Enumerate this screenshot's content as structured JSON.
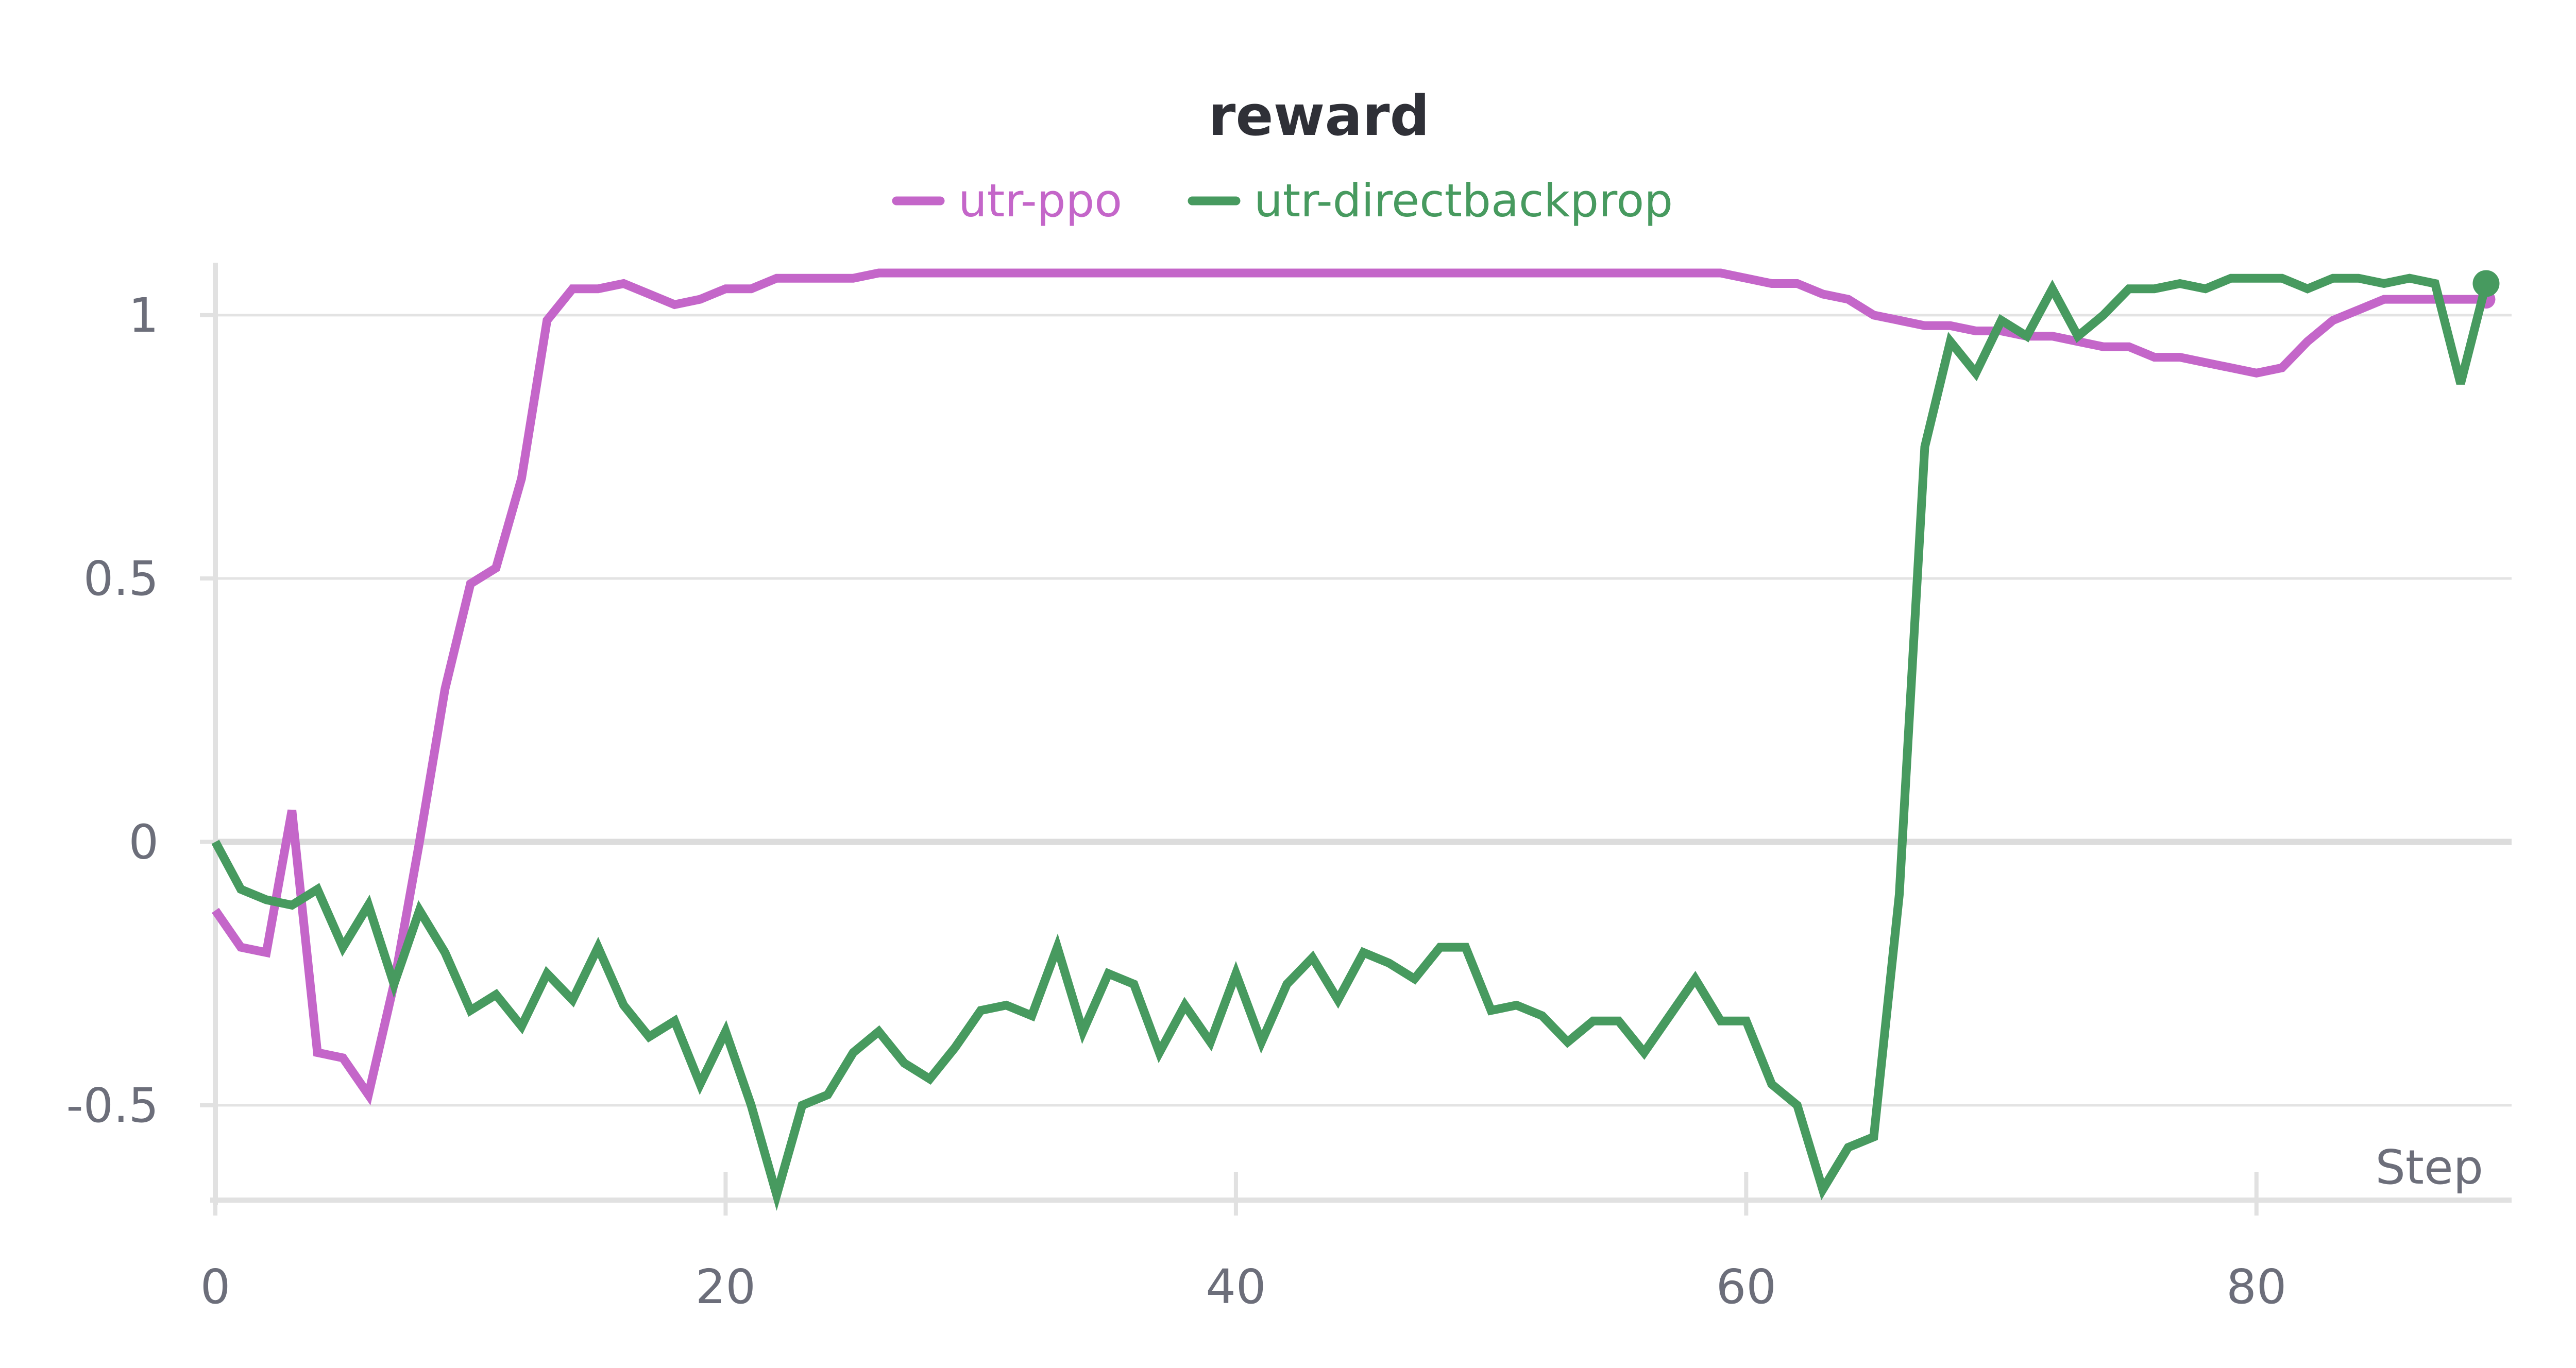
{
  "chart_data": {
    "type": "line",
    "title": "reward",
    "xlabel": "Step",
    "ylabel": "",
    "xlim": [
      0,
      90
    ],
    "ylim": [
      -0.68,
      1.08
    ],
    "xticks": [
      0,
      20,
      40,
      60,
      80
    ],
    "yticks": [
      1,
      0.5,
      0,
      -0.5
    ],
    "ytick_labels": [
      "1",
      "0.5",
      "0",
      "-0.5"
    ],
    "grid": true,
    "legend_position": "top-center",
    "series": [
      {
        "name": "utr-ppo",
        "color": "#c466c9",
        "x": [
          0,
          1,
          2,
          3,
          4,
          5,
          6,
          7,
          8,
          9,
          10,
          11,
          12,
          13,
          14,
          15,
          16,
          17,
          18,
          19,
          20,
          21,
          22,
          23,
          24,
          25,
          26,
          27,
          28,
          29,
          30,
          31,
          32,
          33,
          34,
          35,
          36,
          37,
          38,
          39,
          40,
          41,
          42,
          43,
          44,
          45,
          46,
          47,
          48,
          49,
          50,
          51,
          52,
          53,
          54,
          55,
          56,
          57,
          58,
          59,
          60,
          61,
          62,
          63,
          64,
          65,
          66,
          67,
          68,
          69,
          70,
          71,
          72,
          73,
          74,
          75,
          76,
          77,
          78,
          79,
          80,
          81,
          82,
          83,
          84,
          85,
          86,
          87,
          88,
          89
        ],
        "values": [
          -0.13,
          -0.2,
          -0.21,
          0.06,
          -0.4,
          -0.41,
          -0.48,
          -0.27,
          0.0,
          0.29,
          0.49,
          0.52,
          0.69,
          0.99,
          1.05,
          1.05,
          1.06,
          1.04,
          1.02,
          1.03,
          1.05,
          1.05,
          1.07,
          1.07,
          1.07,
          1.07,
          1.08,
          1.08,
          1.08,
          1.08,
          1.08,
          1.08,
          1.08,
          1.08,
          1.08,
          1.08,
          1.08,
          1.08,
          1.08,
          1.08,
          1.08,
          1.08,
          1.08,
          1.08,
          1.08,
          1.08,
          1.08,
          1.08,
          1.08,
          1.08,
          1.08,
          1.08,
          1.08,
          1.08,
          1.08,
          1.08,
          1.08,
          1.08,
          1.08,
          1.08,
          1.07,
          1.06,
          1.06,
          1.04,
          1.03,
          1.0,
          0.99,
          0.98,
          0.98,
          0.97,
          0.97,
          0.96,
          0.96,
          0.95,
          0.94,
          0.94,
          0.92,
          0.92,
          0.91,
          0.9,
          0.89,
          0.9,
          0.95,
          0.99,
          1.01,
          1.03,
          1.03,
          1.03,
          1.03,
          1.03
        ]
      },
      {
        "name": "utr-directbackprop",
        "color": "#479a5f",
        "x": [
          0,
          1,
          2,
          3,
          4,
          5,
          6,
          7,
          8,
          9,
          10,
          11,
          12,
          13,
          14,
          15,
          16,
          17,
          18,
          19,
          20,
          21,
          22,
          23,
          24,
          25,
          26,
          27,
          28,
          29,
          30,
          31,
          32,
          33,
          34,
          35,
          36,
          37,
          38,
          39,
          40,
          41,
          42,
          43,
          44,
          45,
          46,
          47,
          48,
          49,
          50,
          51,
          52,
          53,
          54,
          55,
          56,
          57,
          58,
          59,
          60,
          61,
          62,
          63,
          64,
          65,
          66,
          67,
          68,
          69,
          70,
          71,
          72,
          73,
          74,
          75,
          76,
          77,
          78,
          79,
          80,
          81,
          82,
          83,
          84,
          85,
          86,
          87,
          88,
          89
        ],
        "values": [
          0.0,
          -0.09,
          -0.11,
          -0.12,
          -0.09,
          -0.2,
          -0.12,
          -0.27,
          -0.13,
          -0.21,
          -0.32,
          -0.29,
          -0.35,
          -0.25,
          -0.3,
          -0.2,
          -0.31,
          -0.37,
          -0.34,
          -0.46,
          -0.36,
          -0.5,
          -0.67,
          -0.5,
          -0.48,
          -0.4,
          -0.36,
          -0.42,
          -0.45,
          -0.39,
          -0.32,
          -0.31,
          -0.33,
          -0.2,
          -0.36,
          -0.25,
          -0.27,
          -0.4,
          -0.31,
          -0.38,
          -0.25,
          -0.38,
          -0.27,
          -0.22,
          -0.3,
          -0.21,
          -0.23,
          -0.26,
          -0.2,
          -0.2,
          -0.32,
          -0.31,
          -0.33,
          -0.38,
          -0.34,
          -0.34,
          -0.4,
          -0.33,
          -0.26,
          -0.34,
          -0.34,
          -0.46,
          -0.5,
          -0.66,
          -0.58,
          -0.56,
          -0.1,
          0.75,
          0.95,
          0.89,
          0.99,
          0.96,
          1.05,
          0.96,
          1.0,
          1.05,
          1.05,
          1.06,
          1.05,
          1.07,
          1.07,
          1.07,
          1.05,
          1.07,
          1.07,
          1.06,
          1.07,
          1.06,
          0.87,
          1.06
        ]
      }
    ]
  }
}
